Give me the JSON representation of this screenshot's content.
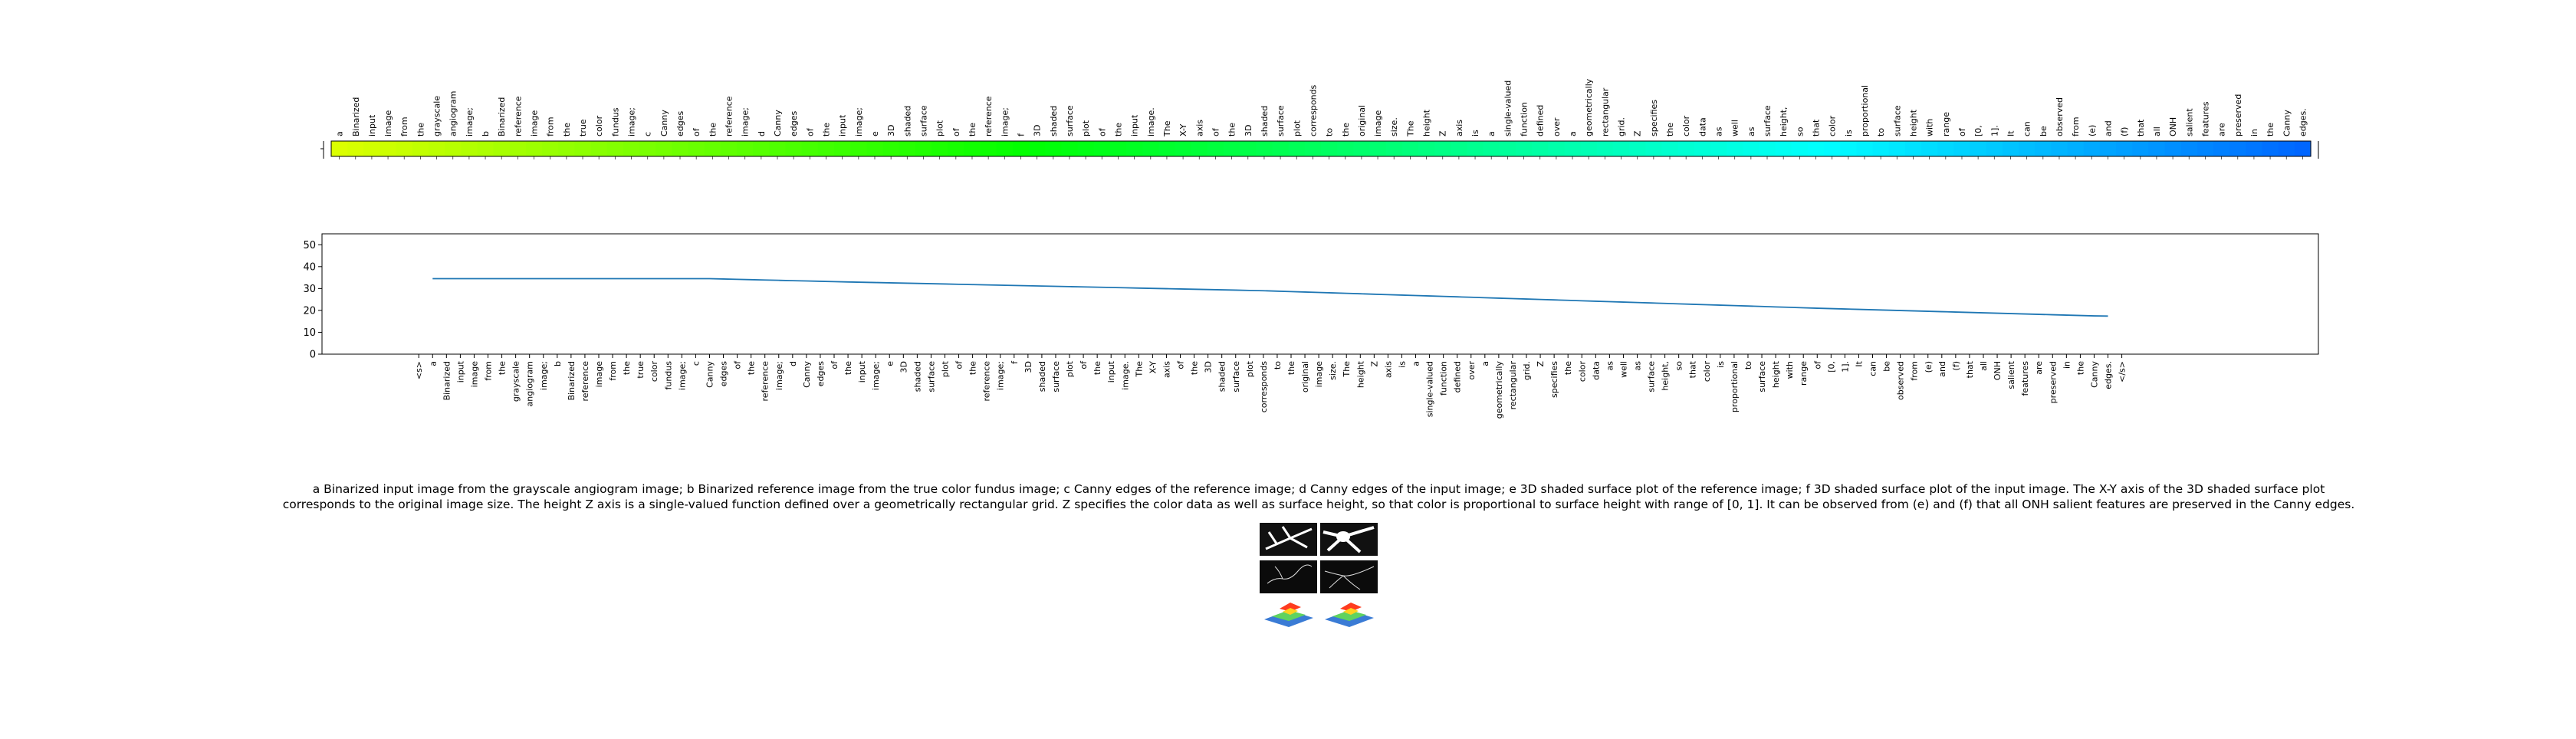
{
  "caption": "a Binarized input image from the grayscale angiogram image; b Binarized reference image from the true color fundus image; c Canny edges of the reference image; d Canny edges of the input image; e 3D shaded surface plot of the reference image; f 3D shaded surface plot of the input image. The X-Y axis of the 3D shaded surface plot corresponds to the original image size. The height Z axis is a single-valued function defined over a geometrically rectangular grid. Z specifies the color data as well as surface height, so that color is proportional to surface height with range of [0, 1]. It can be observed from (e) and (f) that all ONH salient features are preserved in the Canny edges.",
  "chart_data": [
    {
      "type": "heatmap",
      "title": "",
      "colormap": "gist_rainbow",
      "tokens": [
        "a",
        "Binarized",
        "input",
        "image",
        "from",
        "the",
        "grayscale",
        "angiogram",
        "image;",
        "b",
        "Binarized",
        "reference",
        "image",
        "from",
        "the",
        "true",
        "color",
        "fundus",
        "image;",
        "c",
        "Canny",
        "edges",
        "of",
        "the",
        "reference",
        "image;",
        "d",
        "Canny",
        "edges",
        "of",
        "the",
        "input",
        "image;",
        "e",
        "3D",
        "shaded",
        "surface",
        "plot",
        "of",
        "the",
        "reference",
        "image;",
        "f",
        "3D",
        "shaded",
        "surface",
        "plot",
        "of",
        "the",
        "input",
        "image.",
        "The",
        "X-Y",
        "axis",
        "of",
        "the",
        "3D",
        "shaded",
        "surface",
        "plot",
        "corresponds",
        "to",
        "the",
        "original",
        "image",
        "size.",
        "The",
        "height",
        "Z",
        "axis",
        "is",
        "a",
        "single-valued",
        "function",
        "defined",
        "over",
        "a",
        "geometrically",
        "rectangular",
        "grid.",
        "Z",
        "specifies",
        "the",
        "color",
        "data",
        "as",
        "well",
        "as",
        "surface",
        "height,",
        "so",
        "that",
        "color",
        "is",
        "proportional",
        "to",
        "surface",
        "height",
        "with",
        "range",
        "of",
        "[0,",
        "1].",
        "It",
        "can",
        "be",
        "observed",
        "from",
        "(e)",
        "and",
        "(f)",
        "that",
        "all",
        "ONH",
        "salient",
        "features",
        "are",
        "preserved",
        "in",
        "the",
        "Canny",
        "edges."
      ],
      "hue_start": 0.19,
      "hue_end": 0.6
    },
    {
      "type": "line",
      "title": "",
      "xlabel": "",
      "ylabel": "",
      "ylim": [
        0,
        55
      ],
      "yticks": [
        0,
        10,
        20,
        30,
        40,
        50
      ],
      "x_tick_labels": [
        "<s>",
        "a",
        "Binarized",
        "input",
        "image",
        "from",
        "the",
        "grayscale",
        "angiogram",
        "image;",
        "b",
        "Binarized",
        "reference",
        "image",
        "from",
        "the",
        "true",
        "color",
        "fundus",
        "image;",
        "c",
        "Canny",
        "edges",
        "of",
        "the",
        "reference",
        "image;",
        "d",
        "Canny",
        "edges",
        "of",
        "the",
        "input",
        "image;",
        "e",
        "3D",
        "shaded",
        "surface",
        "plot",
        "of",
        "the",
        "reference",
        "image;",
        "f",
        "3D",
        "shaded",
        "surface",
        "plot",
        "of",
        "the",
        "input",
        "image.",
        "The",
        "X-Y",
        "axis",
        "of",
        "the",
        "3D",
        "shaded",
        "surface",
        "plot",
        "corresponds",
        "to",
        "the",
        "original",
        "image",
        "size.",
        "The",
        "height",
        "Z",
        "axis",
        "is",
        "a",
        "single-valued",
        "function",
        "defined",
        "over",
        "a",
        "geometrically",
        "rectangular",
        "grid.",
        "Z",
        "specifies",
        "the",
        "color",
        "data",
        "as",
        "well",
        "as",
        "surface",
        "height,",
        "so",
        "that",
        "color",
        "is",
        "proportional",
        "to",
        "surface",
        "height",
        "with",
        "range",
        "of",
        "[0,",
        "1].",
        "It",
        "can",
        "be",
        "observed",
        "from",
        "(e)",
        "and",
        "(f)",
        "that",
        "all",
        "ONH",
        "salient",
        "features",
        "are",
        "preserved",
        "in",
        "the",
        "Canny",
        "edges.",
        "</s>"
      ],
      "series": [
        {
          "name": "score",
          "color": "#1f77b4",
          "start_index": 1,
          "anchors": [
            [
              0,
              34.5
            ],
            [
              20,
              34.5
            ],
            [
              30,
              33.0
            ],
            [
              60,
              29.0
            ],
            [
              80,
              25.0
            ],
            [
              100,
              21.0
            ],
            [
              120,
              17.5
            ],
            [
              140,
              15.5
            ],
            [
              152,
              14.2
            ]
          ]
        }
      ]
    }
  ],
  "thumbnail": {
    "panels": [
      "binarized-input",
      "binarized-reference",
      "canny-reference",
      "canny-input",
      "surface-reference",
      "surface-input"
    ]
  }
}
